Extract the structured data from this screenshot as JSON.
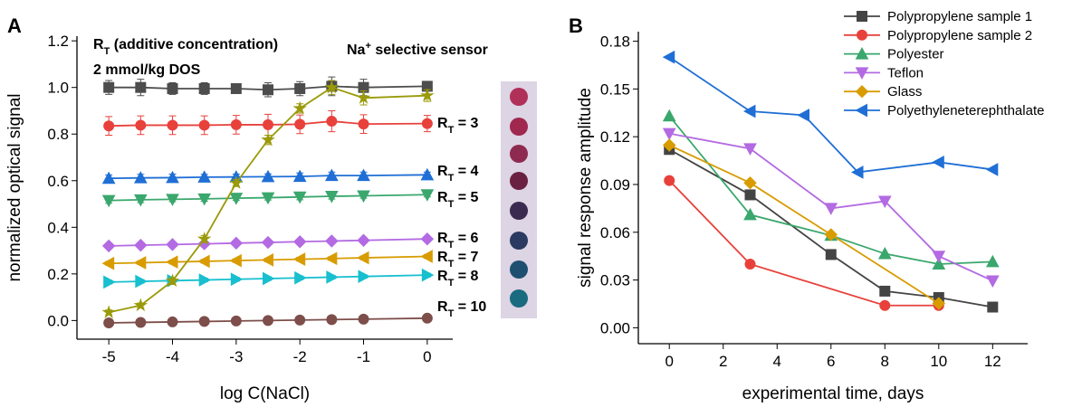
{
  "chart_data": [
    {
      "type": "line",
      "panel": "A",
      "x_label": "log C(NaCl)",
      "y_label": "normalized optical signal",
      "xlim": [
        -5.5,
        0.4
      ],
      "xticks": [
        -5,
        -4,
        -3,
        -2,
        -1,
        0
      ],
      "ylim": [
        -0.08,
        1.22
      ],
      "yticks": [
        {
          "value": 0,
          "label": "0.0"
        },
        {
          "value": 0.2,
          "label": "0.2"
        },
        {
          "value": 0.4,
          "label": "0.4"
        },
        {
          "value": 0.6,
          "label": "0.6"
        },
        {
          "value": 0.8,
          "label": "0.8"
        },
        {
          "value": 1,
          "label": "1.0"
        },
        {
          "value": 1.2,
          "label": "1.2"
        }
      ],
      "annotations": [
        {
          "main": "R",
          "sub": "T",
          "rest": " (additive concentration)"
        },
        {
          "main": "2 mmol/kg DOS"
        }
      ],
      "series": [
        {
          "color": "#4d4d4d",
          "marker": "square",
          "x": [
            -5,
            -4.5,
            -4,
            -3.5,
            -3,
            -2.5,
            -2,
            -1.5,
            -1,
            0
          ],
          "values": [
            1.0,
            1.0,
            0.995,
            0.995,
            0.995,
            0.99,
            0.995,
            1.005,
            1.0,
            1.005
          ],
          "errors": [
            0.03,
            0.035,
            0.025,
            0.025,
            0.02,
            0.03,
            0.03,
            0.04,
            0.035,
            0.02
          ]
        },
        {
          "color": "#e8413b",
          "marker": "circle",
          "label": {
            "main": "R",
            "sub": "T",
            "rest": " = 3"
          },
          "x": [
            -5,
            -4.5,
            -4,
            -3.5,
            -3,
            -2.5,
            -2,
            -1.5,
            -1,
            0
          ],
          "values": [
            0.835,
            0.838,
            0.838,
            0.838,
            0.84,
            0.84,
            0.842,
            0.855,
            0.843,
            0.845
          ],
          "errors": [
            0.04,
            0.04,
            0.04,
            0.04,
            0.04,
            0.045,
            0.04,
            0.045,
            0.04,
            0.035
          ]
        },
        {
          "color": "#1f6fd6",
          "marker": "triangle-up",
          "label": {
            "main": "R",
            "sub": "T",
            "rest": " = 4"
          },
          "x": [
            -5,
            -4.5,
            -4,
            -3.5,
            -3,
            -2.5,
            -2,
            -1.5,
            -1,
            0
          ],
          "values": [
            0.61,
            0.612,
            0.613,
            0.615,
            0.616,
            0.617,
            0.618,
            0.622,
            0.622,
            0.625
          ],
          "errors": [
            0.015,
            0.015,
            0.015,
            0.012,
            0.012,
            0.012,
            0.015,
            0.015,
            0.015,
            0.012
          ]
        },
        {
          "color": "#3aa76d",
          "marker": "triangle-down",
          "label": {
            "main": "R",
            "sub": "T",
            "rest": " = 5"
          },
          "x": [
            -5,
            -4.5,
            -4,
            -3.5,
            -3,
            -2.5,
            -2,
            -1.5,
            -1,
            0
          ],
          "values": [
            0.515,
            0.518,
            0.52,
            0.522,
            0.525,
            0.527,
            0.53,
            0.533,
            0.535,
            0.54
          ],
          "errors": [
            0.012,
            0.012,
            0.01,
            0.01,
            0.01,
            0.01,
            0.012,
            0.012,
            0.01,
            0.01
          ]
        },
        {
          "color": "#b36ae2",
          "marker": "diamond",
          "label": {
            "main": "R",
            "sub": "T",
            "rest": " = 6"
          },
          "x": [
            -5,
            -4.5,
            -4,
            -3.5,
            -3,
            -2.5,
            -2,
            -1.5,
            -1,
            0
          ],
          "values": [
            0.32,
            0.323,
            0.326,
            0.329,
            0.332,
            0.335,
            0.338,
            0.341,
            0.344,
            0.35
          ],
          "errors": [
            0.008,
            0.008,
            0.008,
            0.008,
            0.008,
            0.008,
            0.008,
            0.008,
            0.008,
            0.008
          ]
        },
        {
          "color": "#d89c00",
          "marker": "triangle-left",
          "label": {
            "main": "R",
            "sub": "T",
            "rest": " = 7"
          },
          "x": [
            -5,
            -4.5,
            -4,
            -3.5,
            -3,
            -2.5,
            -2,
            -1.5,
            -1,
            0
          ],
          "values": [
            0.245,
            0.248,
            0.251,
            0.254,
            0.257,
            0.26,
            0.263,
            0.266,
            0.269,
            0.275
          ],
          "errors": [
            0.008,
            0.008,
            0.008,
            0.008,
            0.008,
            0.008,
            0.008,
            0.008,
            0.008,
            0.008
          ]
        },
        {
          "color": "#17bfcf",
          "marker": "triangle-right",
          "label": {
            "main": "R",
            "sub": "T",
            "rest": " = 8"
          },
          "x": [
            -5,
            -4.5,
            -4,
            -3.5,
            -3,
            -2.5,
            -2,
            -1.5,
            -1,
            0
          ],
          "values": [
            0.165,
            0.168,
            0.171,
            0.174,
            0.177,
            0.18,
            0.183,
            0.186,
            0.189,
            0.195
          ],
          "errors": [
            0.008,
            0.008,
            0.008,
            0.008,
            0.008,
            0.008,
            0.008,
            0.008,
            0.008,
            0.008
          ]
        },
        {
          "color": "#7d4e4a",
          "marker": "circle",
          "label": {
            "main": "R",
            "sub": "T",
            "rest": " = 10"
          },
          "x": [
            -5,
            -4.5,
            -4,
            -3.5,
            -3,
            -2.5,
            -2,
            -1.5,
            -1,
            0
          ],
          "values": [
            -0.01,
            -0.008,
            -0.006,
            -0.004,
            -0.002,
            0.0,
            0.002,
            0.004,
            0.006,
            0.01
          ],
          "errors": [
            0.006,
            0.006,
            0.006,
            0.006,
            0.006,
            0.006,
            0.006,
            0.006,
            0.006,
            0.006
          ]
        },
        {
          "color": "#9a9a0a",
          "marker": "star",
          "label": {
            "main": "Na",
            "sup": "+",
            "rest": " selective sensor"
          },
          "x": [
            -5,
            -4.5,
            -4,
            -3.5,
            -3,
            -2.5,
            -2,
            -1.5,
            -1,
            0
          ],
          "values": [
            0.035,
            0.065,
            0.17,
            0.35,
            0.59,
            0.775,
            0.91,
            1.0,
            0.955,
            0.965
          ],
          "errors": [
            0.01,
            0.01,
            0.015,
            0.015,
            0.015,
            0.02,
            0.02,
            0.03,
            0.03,
            0.025
          ]
        }
      ]
    },
    {
      "type": "line",
      "panel": "B",
      "x_label": "experimental time, days",
      "y_label": "signal response amplitude",
      "xlim": [
        -1.15,
        13.3
      ],
      "xticks": [
        0,
        2,
        4,
        6,
        8,
        10,
        12
      ],
      "ylim": [
        -0.01,
        0.186
      ],
      "yticks": [
        {
          "value": 0,
          "label": "0.00"
        },
        {
          "value": 0.03,
          "label": "0.03"
        },
        {
          "value": 0.06,
          "label": "0.06"
        },
        {
          "value": 0.09,
          "label": "0.09"
        },
        {
          "value": 0.12,
          "label": "0.12"
        },
        {
          "value": 0.15,
          "label": "0.15"
        },
        {
          "value": 0.18,
          "label": "0.18"
        }
      ],
      "legend": "top-right",
      "series": [
        {
          "name": "Polypropylene sample 1",
          "color": "#444444",
          "marker": "square",
          "x": [
            0,
            3,
            6,
            8,
            10,
            12
          ],
          "values": [
            0.112,
            0.0835,
            0.046,
            0.023,
            0.019,
            0.013
          ]
        },
        {
          "name": "Polypropylene sample 2",
          "color": "#e8413b",
          "marker": "circle",
          "x": [
            0,
            3,
            8,
            10
          ],
          "values": [
            0.0925,
            0.04,
            0.014,
            0.014
          ]
        },
        {
          "name": "Polyester",
          "color": "#3aa76d",
          "marker": "triangle-up",
          "x": [
            0,
            3,
            6,
            8,
            10,
            12
          ],
          "values": [
            0.133,
            0.071,
            0.058,
            0.0465,
            0.04,
            0.0415
          ]
        },
        {
          "name": "Teflon",
          "color": "#b36ae2",
          "marker": "triangle-down",
          "x": [
            0,
            3,
            6,
            8,
            10,
            12
          ],
          "values": [
            0.122,
            0.1125,
            0.075,
            0.0795,
            0.045,
            0.0295
          ]
        },
        {
          "name": "Glass",
          "color": "#d89c00",
          "marker": "diamond",
          "x": [
            0,
            3,
            6,
            10
          ],
          "values": [
            0.1147,
            0.091,
            0.0585,
            0.0153
          ]
        },
        {
          "name": "Polyethyleneterephthalate",
          "color": "#1f6fd6",
          "marker": "triangle-left",
          "x": [
            0,
            3,
            5,
            7,
            10,
            12
          ],
          "values": [
            0.17,
            0.136,
            0.1335,
            0.0977,
            0.104,
            0.0994
          ]
        }
      ]
    }
  ]
}
